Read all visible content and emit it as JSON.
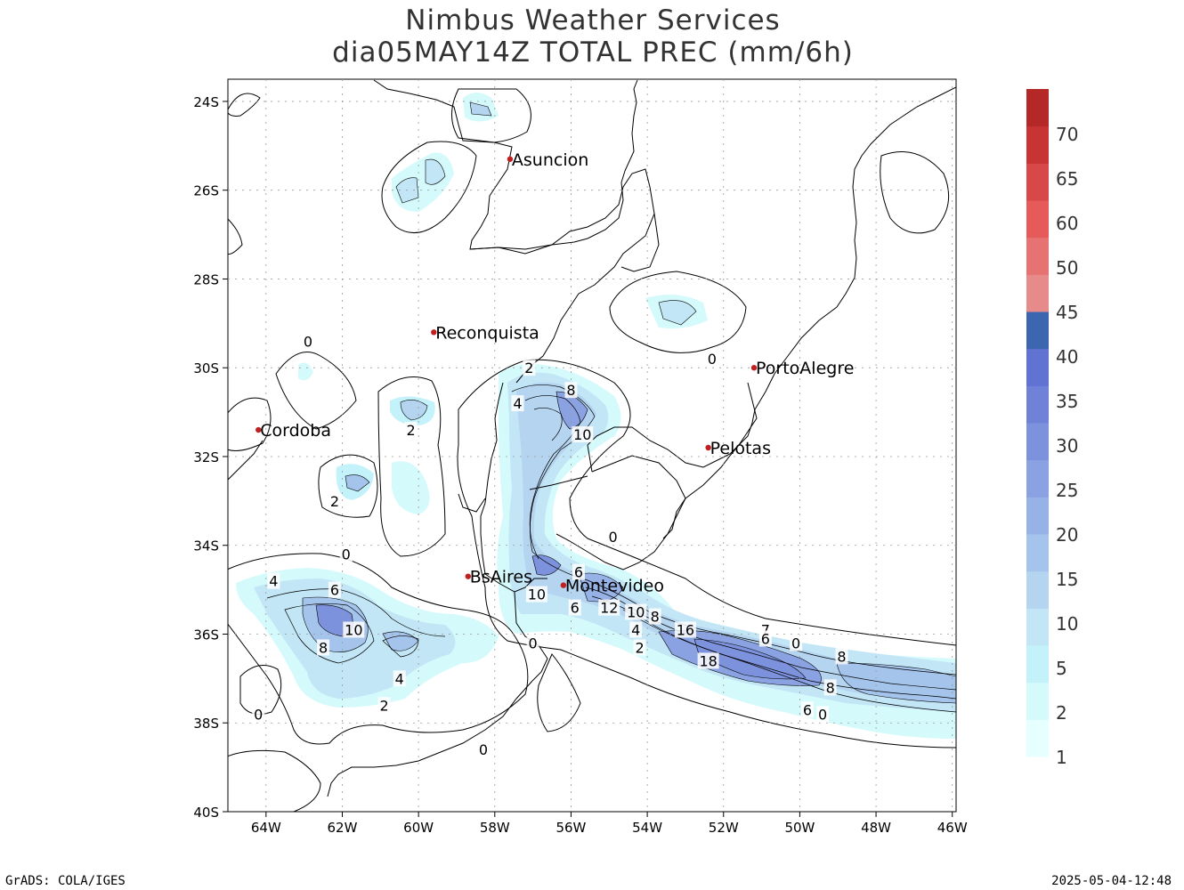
{
  "title": {
    "line1": "Nimbus Weather Services",
    "line2": "dia05MAY14Z TOTAL PREC (mm/6h)"
  },
  "map": {
    "lat_ticks": [
      "24S",
      "26S",
      "28S",
      "30S",
      "32S",
      "34S",
      "36S",
      "38S",
      "40S"
    ],
    "lon_ticks": [
      "64W",
      "62W",
      "60W",
      "58W",
      "56W",
      "54W",
      "52W",
      "50W",
      "48W",
      "46W"
    ],
    "lat_range": [
      -40.0,
      -23.5
    ],
    "lon_range": [
      -65.0,
      -45.9
    ],
    "cities": [
      {
        "name": "Asuncion",
        "lon": -57.6,
        "lat": -25.3
      },
      {
        "name": "Reconquista",
        "lon": -59.6,
        "lat": -29.2
      },
      {
        "name": "PortoAlegre",
        "lon": -51.2,
        "lat": -30.0
      },
      {
        "name": "Cordoba",
        "lon": -64.2,
        "lat": -31.4
      },
      {
        "name": "Pelotas",
        "lon": -52.4,
        "lat": -31.8
      },
      {
        "name": "BsAires",
        "lon": -58.7,
        "lat": -34.7
      },
      {
        "name": "Montevideo",
        "lon": -56.2,
        "lat": -34.9
      }
    ],
    "contour_labels": [
      {
        "text": "0",
        "lon": -62.9,
        "lat": -29.4
      },
      {
        "text": "2",
        "lon": -57.1,
        "lat": -30.0
      },
      {
        "text": "8",
        "lon": -56.0,
        "lat": -30.5
      },
      {
        "text": "4",
        "lon": -57.4,
        "lat": -30.8
      },
      {
        "text": "2",
        "lon": -60.2,
        "lat": -31.4
      },
      {
        "text": "10",
        "lon": -55.7,
        "lat": -31.5
      },
      {
        "text": "2",
        "lon": -62.2,
        "lat": -33.0
      },
      {
        "text": "0",
        "lon": -54.9,
        "lat": -33.8
      },
      {
        "text": "0",
        "lon": -61.9,
        "lat": -34.2
      },
      {
        "text": "6",
        "lon": -55.8,
        "lat": -34.6
      },
      {
        "text": "4",
        "lon": -63.8,
        "lat": -34.8
      },
      {
        "text": "6",
        "lon": -62.2,
        "lat": -35.0
      },
      {
        "text": "10",
        "lon": -56.9,
        "lat": -35.1
      },
      {
        "text": "6",
        "lon": -55.9,
        "lat": -35.4
      },
      {
        "text": "12",
        "lon": -55.0,
        "lat": -35.4
      },
      {
        "text": "10",
        "lon": -54.3,
        "lat": -35.5
      },
      {
        "text": "8",
        "lon": -53.8,
        "lat": -35.6
      },
      {
        "text": "10",
        "lon": -61.7,
        "lat": -35.9
      },
      {
        "text": "16",
        "lon": -53.0,
        "lat": -35.9
      },
      {
        "text": "4",
        "lon": -54.3,
        "lat": -35.9
      },
      {
        "text": "7",
        "lon": -50.9,
        "lat": -35.9
      },
      {
        "text": "8",
        "lon": -62.5,
        "lat": -36.3
      },
      {
        "text": "6",
        "lon": -50.9,
        "lat": -36.1
      },
      {
        "text": "0",
        "lon": -50.1,
        "lat": -36.2
      },
      {
        "text": "0",
        "lon": -57.0,
        "lat": -36.2
      },
      {
        "text": "2",
        "lon": -54.2,
        "lat": -36.3
      },
      {
        "text": "18",
        "lon": -52.4,
        "lat": -36.6
      },
      {
        "text": "8",
        "lon": -48.9,
        "lat": -36.5
      },
      {
        "text": "4",
        "lon": -60.5,
        "lat": -37.0
      },
      {
        "text": "8",
        "lon": -49.2,
        "lat": -37.2
      },
      {
        "text": "2",
        "lon": -60.9,
        "lat": -37.6
      },
      {
        "text": "6",
        "lon": -49.8,
        "lat": -37.7
      },
      {
        "text": "0",
        "lon": -49.4,
        "lat": -37.8
      },
      {
        "text": "0",
        "lon": -64.2,
        "lat": -37.8
      },
      {
        "text": "0",
        "lon": -58.3,
        "lat": -38.6
      },
      {
        "text": "0",
        "lon": -52.3,
        "lat": -29.8
      }
    ]
  },
  "colorbar": {
    "colors": [
      "#e6ffff",
      "#d4fafc",
      "#c3f2fa",
      "#c2e6f6",
      "#b4d4f0",
      "#a5c4ec",
      "#96b2e6",
      "#8aa2e2",
      "#7d92dc",
      "#6f82d8",
      "#6072d2",
      "#3c66b0",
      "#e68a8a",
      "#e67272",
      "#e65a5a",
      "#d84848",
      "#c83434",
      "#b42828"
    ],
    "labels": [
      "1",
      "2",
      "5",
      "10",
      "15",
      "20",
      "25",
      "30",
      "35",
      "40",
      "45",
      "50",
      "60",
      "65",
      "70"
    ]
  },
  "footer": {
    "left": "GrADS: COLA/IGES",
    "right": "2025-05-04-12:48"
  }
}
